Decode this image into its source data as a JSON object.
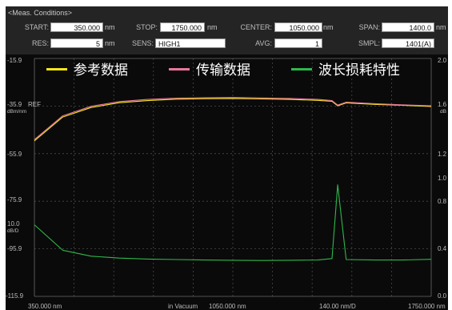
{
  "conditions": {
    "title": "<Meas. Conditions>",
    "start": {
      "label": "START:",
      "value": "350.000",
      "unit": "nm"
    },
    "stop": {
      "label": "STOP:",
      "value": "1750.000",
      "unit": "nm"
    },
    "center": {
      "label": "CENTER:",
      "value": "1050.000",
      "unit": "nm"
    },
    "span": {
      "label": "SPAN:",
      "value": "1400.0",
      "unit": "nm"
    },
    "res": {
      "label": "RES:",
      "value": "5",
      "unit": "nm"
    },
    "sens": {
      "label": "SENS:",
      "value": "HIGH1"
    },
    "avg": {
      "label": "AVG:",
      "value": "1"
    },
    "smpl": {
      "label": "SMPL:",
      "value": "1401(A)"
    }
  },
  "graph": {
    "left_axis_ticks": [
      "-15.9",
      "-35.9",
      "-55.9",
      "-75.9",
      "-95.9",
      "-115.9"
    ],
    "ref_label": "REF",
    "left_unit": "dBm/nm",
    "left_scale": "10.0",
    "left_scale_unit": "dB/D",
    "right_axis_ticks": [
      "2.0",
      "1.6",
      "1.2",
      "1.0",
      "0.8",
      "0.4",
      "0.0"
    ],
    "right_unit_fragment": "dB",
    "x_start": "350.000 nm",
    "x_center_note": "in Vacuum",
    "x_center": "1050.000 nm",
    "x_scale": "140.00 nm/D",
    "x_stop": "1750.000 nm"
  },
  "legend": [
    {
      "label": "参考数据",
      "color": "#f5e61b"
    },
    {
      "label": "传输数据",
      "color": "#e8779a"
    },
    {
      "label": "波长损耗特性",
      "color": "#2fb84d"
    }
  ],
  "chart_data": {
    "type": "line",
    "x": [
      350,
      450,
      550,
      650,
      750,
      850,
      950,
      1050,
      1150,
      1250,
      1350,
      1400,
      1420,
      1450,
      1550,
      1650,
      1750
    ],
    "xlim": [
      350,
      1750
    ],
    "ylim": [
      -115.9,
      -15.9
    ],
    "series": [
      {
        "name": "参考数据",
        "color": "#f5e61b",
        "values": [
          -50.5,
          -40.5,
          -36.5,
          -34.5,
          -33.6,
          -33.0,
          -32.8,
          -32.7,
          -32.9,
          -33.1,
          -33.5,
          -33.9,
          -35.8,
          -34.6,
          -35.2,
          -35.6,
          -36.1
        ]
      },
      {
        "name": "传输数据",
        "color": "#e8779a",
        "values": [
          -50.0,
          -40.0,
          -36.0,
          -34.0,
          -33.1,
          -32.6,
          -32.4,
          -32.3,
          -32.5,
          -32.7,
          -33.1,
          -33.6,
          -35.5,
          -34.3,
          -34.9,
          -35.4,
          -35.8
        ]
      },
      {
        "name": "波长损耗特性",
        "color": "#2fb84d",
        "values": [
          -85.8,
          -96.5,
          -99.0,
          -99.8,
          -100.2,
          -100.4,
          -100.6,
          -100.7,
          -100.8,
          -100.7,
          -100.6,
          -100.0,
          -69.0,
          -100.4,
          -100.6,
          -100.6,
          -100.3
        ]
      }
    ]
  }
}
